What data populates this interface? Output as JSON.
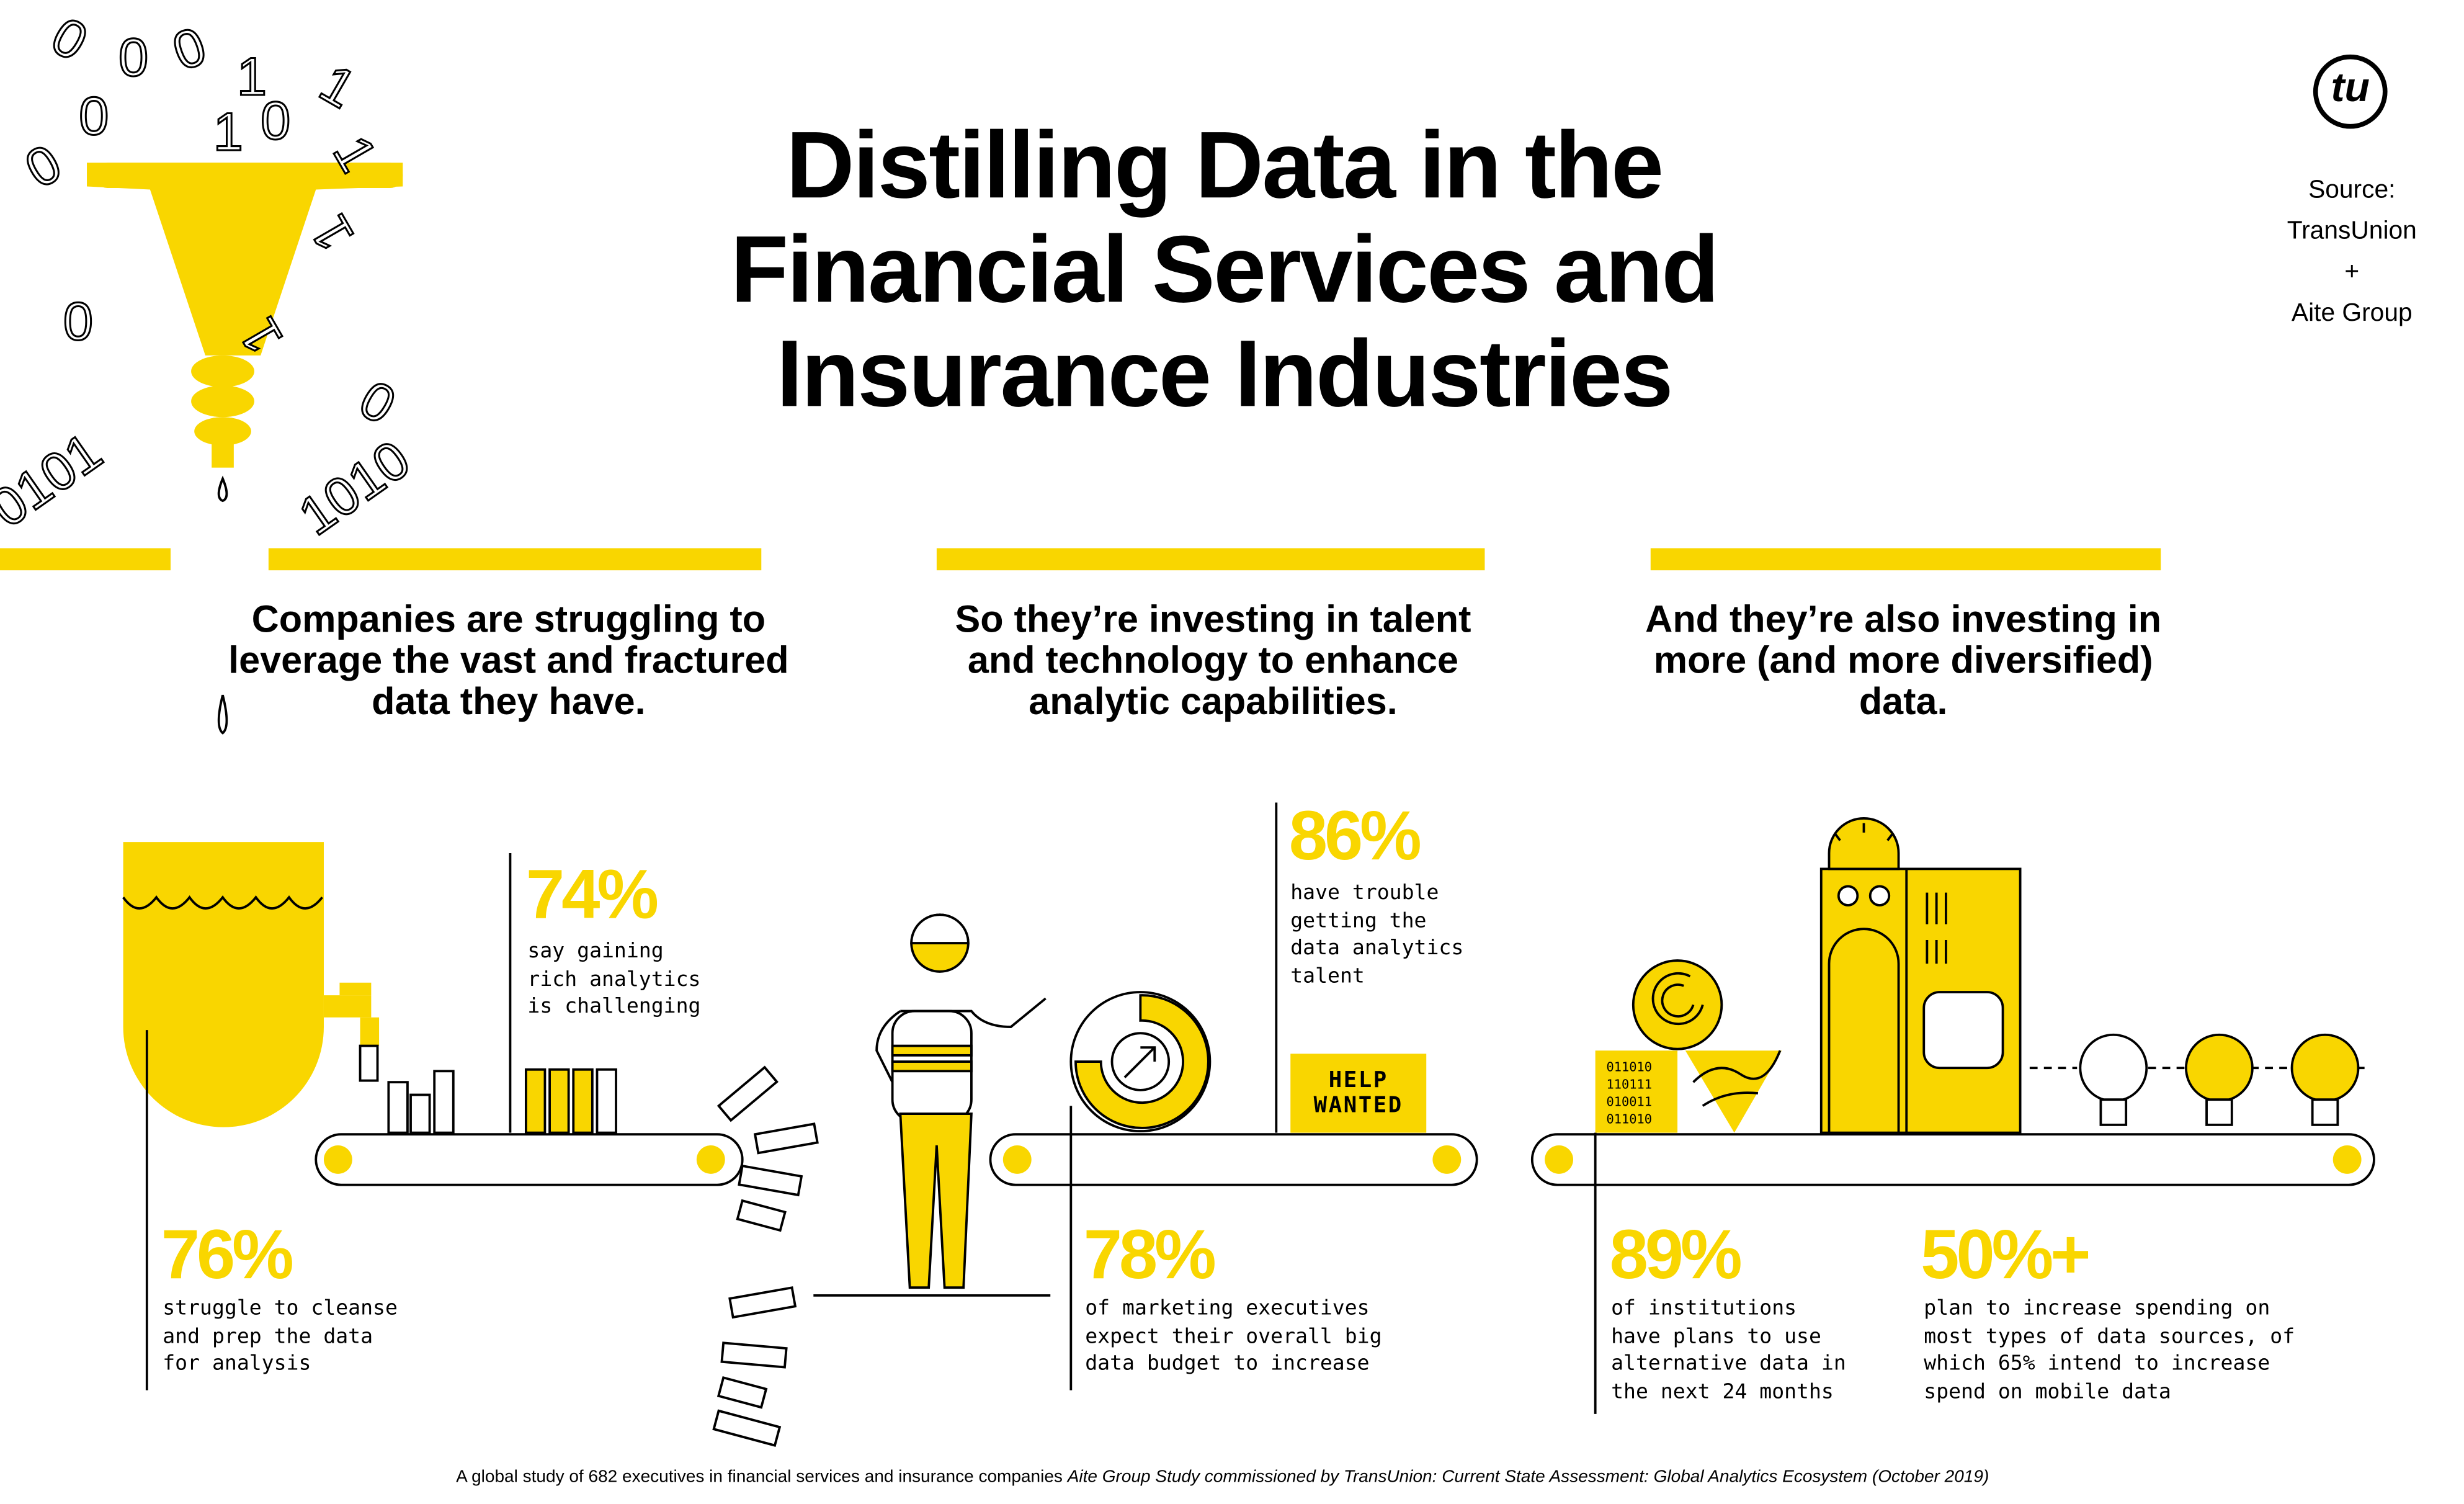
{
  "title": {
    "lines": [
      "Distilling Data in the",
      "Financial Services and",
      "Insurance Industries"
    ]
  },
  "source": {
    "label": "Source:",
    "org1": "TransUnion",
    "plus": "+",
    "org2": "Aite Group",
    "logo_text": "tu"
  },
  "sections": [
    {
      "heading": "Companies are struggling to leverage the vast and fractured data they have."
    },
    {
      "heading": "So they’re investing in talent and technology to enhance analytic capabilities."
    },
    {
      "heading": "And they’re also investing in more (and more diversified) data."
    }
  ],
  "stats": [
    {
      "value": "74%",
      "text": "say gaining\nrich analytics\nis challenging"
    },
    {
      "value": "76%",
      "text": "struggle to cleanse\nand prep the data\nfor analysis"
    },
    {
      "value": "86%",
      "text": "have trouble\ngetting the\ndata analytics\ntalent"
    },
    {
      "value": "78%",
      "text": "of marketing executives\nexpect their overall big\ndata budget to increase"
    },
    {
      "value": "89%",
      "text": "of institutions\nhave plans to use\nalternative data in\nthe next 24 months"
    },
    {
      "value": "50%+",
      "text": "plan to increase spending on\nmost types of data sources, of\nwhich 65% intend to increase\nspend on mobile data"
    }
  ],
  "help_sign": {
    "line1": "HELP",
    "line2": "WANTED"
  },
  "binary_block": "011010\n110111\n010011\n011010",
  "footer": {
    "plain": "A global study of 682 executives in financial services and insurance companies ",
    "italic": "Aite Group Study commissioned by TransUnion: Current State Assessment: Global Analytics Ecosystem (October 2019)"
  },
  "colors": {
    "accent": "#F9D600",
    "ink": "#000000",
    "background": "#FFFFFF"
  }
}
